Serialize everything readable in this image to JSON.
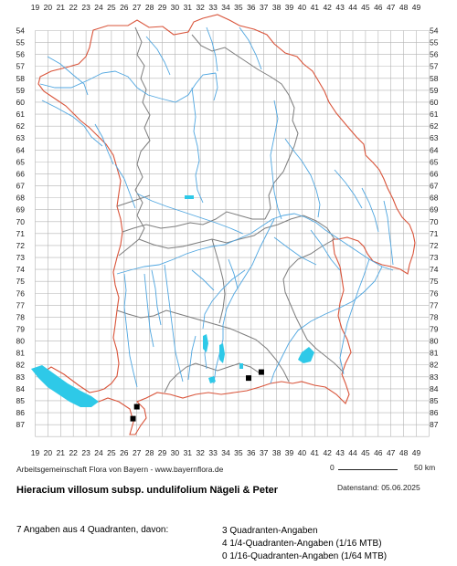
{
  "colors": {
    "grid": "#b4b4b4",
    "water": "#4fa6e0",
    "lake": "#2ec9e8",
    "state_border": "#d9543a",
    "region_border": "#7d7d7d",
    "marker": "#000000"
  },
  "grid": {
    "x_labels": [
      "19",
      "20",
      "21",
      "22",
      "23",
      "24",
      "25",
      "26",
      "27",
      "28",
      "29",
      "30",
      "31",
      "32",
      "33",
      "34",
      "35",
      "36",
      "37",
      "38",
      "39",
      "40",
      "41",
      "42",
      "43",
      "44",
      "45",
      "46",
      "47",
      "48",
      "49"
    ],
    "y_labels": [
      "54",
      "55",
      "56",
      "57",
      "58",
      "59",
      "60",
      "61",
      "62",
      "63",
      "64",
      "65",
      "66",
      "67",
      "68",
      "69",
      "70",
      "71",
      "72",
      "73",
      "74",
      "75",
      "76",
      "77",
      "78",
      "79",
      "80",
      "81",
      "82",
      "83",
      "84",
      "85",
      "86",
      "87"
    ]
  },
  "records": [
    {
      "col": 27,
      "row": 85.5
    },
    {
      "col": 26.7,
      "row": 86.5
    },
    {
      "col": 35.8,
      "row": 83.1
    },
    {
      "col": 36.8,
      "row": 82.6
    }
  ],
  "credit": "Arbeitsgemeinschaft Flora von Bayern - www.bayernflora.de",
  "scale": {
    "start": "0",
    "end": "50 km"
  },
  "date_label": "Datenstand: 05.06.2025",
  "title": "Hieracium villosum subsp. undulifolium Nägeli & Peter",
  "stats": {
    "summary": "7 Angaben aus 4 Quadranten, davon:",
    "lines": [
      "3 Quadranten-Angaben",
      "4 1/4-Quadranten-Angaben (1/16 MTB)",
      "0 1/16-Quadranten-Angaben (1/64 MTB)"
    ]
  }
}
